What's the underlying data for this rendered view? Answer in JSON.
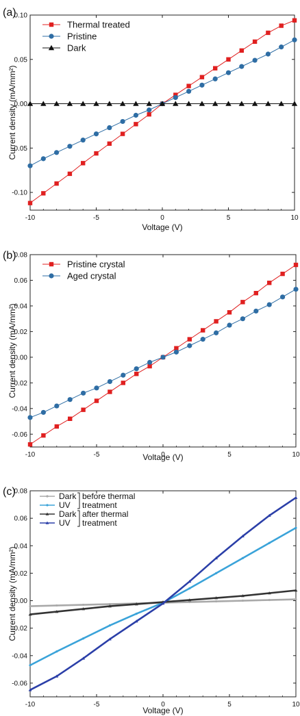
{
  "chart_data": [
    {
      "panel": "(a)",
      "type": "line",
      "xlabel": "Voltage (V)",
      "ylabel": "Current density (mA/mm²)",
      "xlim": [
        -10,
        10
      ],
      "ylim": [
        -0.12,
        0.1
      ],
      "xticks": [
        -10,
        -5,
        0,
        5,
        10
      ],
      "xtick_labels": [
        "-10",
        "-5",
        "0",
        "5",
        "10"
      ],
      "yticks": [
        -0.1,
        -0.05,
        0.0,
        0.05,
        0.1
      ],
      "ytick_labels": [
        "-0.10",
        "-0.05",
        "0.00",
        "0.05",
        "0.10"
      ],
      "grid": false,
      "legend_position": "top-left",
      "series": [
        {
          "name": "Thermal treated",
          "color": "#e02020",
          "marker": "square",
          "x": [
            -10,
            -9,
            -8,
            -7,
            -6,
            -5,
            -4,
            -3,
            -2,
            -1,
            0,
            1,
            2,
            3,
            4,
            5,
            6,
            7,
            8,
            9,
            10
          ],
          "y": [
            -0.112,
            -0.101,
            -0.09,
            -0.079,
            -0.067,
            -0.056,
            -0.045,
            -0.034,
            -0.023,
            -0.012,
            0.0,
            0.01,
            0.02,
            0.03,
            0.04,
            0.05,
            0.06,
            0.07,
            0.08,
            0.088,
            0.094
          ]
        },
        {
          "name": "Pristine",
          "color": "#2e6da4",
          "marker": "circle",
          "x": [
            -10,
            -9,
            -8,
            -7,
            -6,
            -5,
            -4,
            -3,
            -2,
            -1,
            0,
            1,
            2,
            3,
            4,
            5,
            6,
            7,
            8,
            9,
            10
          ],
          "y": [
            -0.07,
            -0.062,
            -0.055,
            -0.048,
            -0.041,
            -0.034,
            -0.027,
            -0.02,
            -0.013,
            -0.007,
            0.0,
            0.007,
            0.014,
            0.021,
            0.028,
            0.035,
            0.042,
            0.049,
            0.056,
            0.064,
            0.072
          ]
        },
        {
          "name": "Dark",
          "color": "#111111",
          "marker": "triangle",
          "x": [
            -10,
            -9,
            -8,
            -7,
            -6,
            -5,
            -4,
            -3,
            -2,
            -1,
            0,
            1,
            2,
            3,
            4,
            5,
            6,
            7,
            8,
            9,
            10
          ],
          "y": [
            0.0,
            0.0,
            0.0,
            0.0,
            0.0,
            0.0,
            0.0,
            0.0,
            0.0,
            0.0,
            0.0,
            0.0,
            0.0,
            0.0,
            0.0,
            0.0,
            0.0,
            0.0,
            0.0,
            0.0,
            0.0
          ]
        }
      ]
    },
    {
      "panel": "(b)",
      "type": "line",
      "xlabel": "Voltage (V)",
      "ylabel": "Current density (mA/mm²)",
      "xlim": [
        -10,
        10
      ],
      "ylim": [
        -0.07,
        0.08
      ],
      "xticks": [
        -10,
        -5,
        0,
        5,
        10
      ],
      "xtick_labels": [
        "-10",
        "-5",
        "0",
        "5",
        "10"
      ],
      "yticks": [
        -0.06,
        -0.04,
        -0.02,
        0.0,
        0.02,
        0.04,
        0.06,
        0.08
      ],
      "ytick_labels": [
        "-0.06",
        "-0.04",
        "-0.02",
        "0.00",
        "0.02",
        "0.04",
        "0.06",
        "0.08"
      ],
      "grid": false,
      "legend_position": "top-left",
      "series": [
        {
          "name": "Pristine crystal",
          "color": "#e02020",
          "marker": "square",
          "x": [
            -10,
            -9,
            -8,
            -7,
            -6,
            -5,
            -4,
            -3,
            -2,
            -1,
            0,
            1,
            2,
            3,
            4,
            5,
            6,
            7,
            8,
            9,
            10
          ],
          "y": [
            -0.068,
            -0.061,
            -0.054,
            -0.048,
            -0.041,
            -0.034,
            -0.027,
            -0.02,
            -0.013,
            -0.007,
            0.0,
            0.007,
            0.014,
            0.021,
            0.028,
            0.035,
            0.043,
            0.05,
            0.058,
            0.065,
            0.072
          ]
        },
        {
          "name": "Aged crystal",
          "color": "#2e6da4",
          "marker": "circle",
          "x": [
            -10,
            -9,
            -8,
            -7,
            -6,
            -5,
            -4,
            -3,
            -2,
            -1,
            0,
            1,
            2,
            3,
            4,
            5,
            6,
            7,
            8,
            9,
            10
          ],
          "y": [
            -0.047,
            -0.043,
            -0.038,
            -0.033,
            -0.028,
            -0.024,
            -0.019,
            -0.014,
            -0.009,
            -0.004,
            0.0,
            0.004,
            0.009,
            0.014,
            0.019,
            0.025,
            0.03,
            0.036,
            0.041,
            0.047,
            0.053
          ]
        }
      ]
    },
    {
      "panel": "(c)",
      "type": "line",
      "xlabel": "Voltage (V)",
      "ylabel": "Current density (mA/mm²)",
      "xlim": [
        -10,
        10
      ],
      "ylim": [
        -0.07,
        0.08
      ],
      "xticks": [
        -10,
        -5,
        0,
        5,
        10
      ],
      "xtick_labels": [
        "-10",
        "-5",
        "0",
        "5",
        "10"
      ],
      "yticks": [
        -0.06,
        -0.04,
        -0.02,
        0.0,
        0.02,
        0.04,
        0.06,
        0.08
      ],
      "ytick_labels": [
        "-0.06",
        "-0.04",
        "-0.02",
        "0.00",
        "0.02",
        "0.04",
        "0.06",
        "0.08"
      ],
      "grid": false,
      "legend_position": "top-left",
      "legend_groups": [
        {
          "label": "before thermal treatment",
          "lines": [
            "before thermal",
            "treatment"
          ]
        },
        {
          "label": "after thermal treatment",
          "lines": [
            "after thermal",
            "treatment"
          ]
        }
      ],
      "series": [
        {
          "name": "Dark",
          "group": "before thermal treatment",
          "color": "#a9a9a9",
          "marker": "small-circle",
          "x": [
            -10,
            -8,
            -6,
            -4,
            -2,
            0,
            2,
            4,
            6,
            8,
            10
          ],
          "y": [
            -0.004,
            -0.0035,
            -0.003,
            -0.0025,
            -0.002,
            -0.0015,
            -0.001,
            -0.0005,
            0.0,
            0.0005,
            0.001
          ]
        },
        {
          "name": "UV",
          "group": "before thermal treatment",
          "color": "#3aa3d9",
          "marker": "small-circle",
          "x": [
            -10,
            -8,
            -6,
            -4,
            -2,
            0,
            2,
            4,
            6,
            8,
            10
          ],
          "y": [
            -0.047,
            -0.037,
            -0.0275,
            -0.018,
            -0.0095,
            -0.0015,
            0.009,
            0.02,
            0.031,
            0.042,
            0.053
          ]
        },
        {
          "name": "Dark",
          "group": "after thermal treatment",
          "color": "#333333",
          "marker": "small-triangle",
          "x": [
            -10,
            -8,
            -6,
            -4,
            -2,
            0,
            2,
            4,
            6,
            8,
            10
          ],
          "y": [
            -0.01,
            -0.008,
            -0.006,
            -0.004,
            -0.0025,
            -0.001,
            0.0005,
            0.002,
            0.0035,
            0.0055,
            0.0075
          ]
        },
        {
          "name": "UV",
          "group": "after thermal treatment",
          "color": "#2b3fa8",
          "marker": "small-triangle",
          "x": [
            -10,
            -8,
            -6,
            -4,
            -2,
            0,
            2,
            4,
            6,
            8,
            10
          ],
          "y": [
            -0.065,
            -0.055,
            -0.042,
            -0.028,
            -0.015,
            -0.002,
            0.014,
            0.031,
            0.047,
            0.062,
            0.075
          ]
        }
      ]
    }
  ]
}
